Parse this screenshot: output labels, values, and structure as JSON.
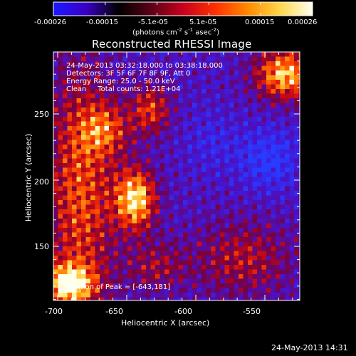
{
  "colorbar": {
    "tick_labels": [
      "-0.00026",
      "-0.00015",
      "-5.1e-05",
      "5.1e-05",
      "0.00015",
      "0.00026"
    ],
    "units_prefix": "(photons cm",
    "units_exp1": "-2",
    "units_mid": " s",
    "units_exp2": "-1",
    "units_suffix": " asec",
    "units_exp3": "-2",
    "units_close": ")",
    "stops": [
      "#1a1aff",
      "#3a00c8",
      "#000000",
      "#5a0018",
      "#c8001e",
      "#ff3000",
      "#ff8a00",
      "#ffd84a",
      "#fffef0"
    ]
  },
  "plot": {
    "title": "Reconstructed RHESSI Image",
    "xlabel": "Heliocentric X (arcsec)",
    "ylabel": "Heliocentric Y (arcsec)",
    "xticks": [
      "-700",
      "-650",
      "-600",
      "-550"
    ],
    "yticks": [
      "250",
      "200",
      "150"
    ],
    "info_lines": [
      "24-May-2013 03:32:18.000 to 03:38:18.000",
      "Detectors: 3F 5F 6F 7F 8F 9F, Att 0",
      "Energy Range: 25.0 - 50.0 keV",
      "Clean     Total counts: 1.21E+04"
    ],
    "peak_label": "Position of Peak = [-643,181]"
  },
  "footer": {
    "timestamp": "24-May-2013 14:31"
  }
}
